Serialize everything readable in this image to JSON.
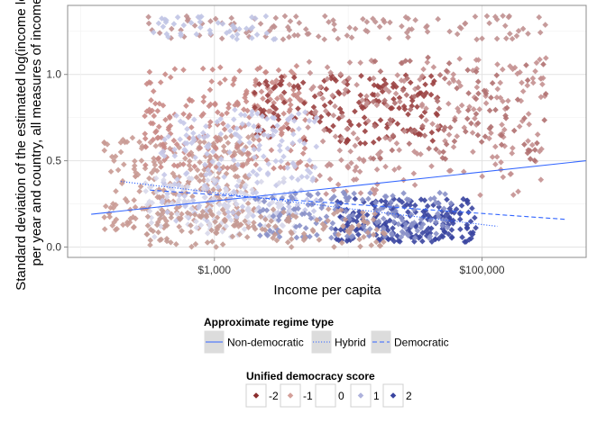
{
  "chart_data": {
    "type": "scatter",
    "title": "",
    "xlabel": "Income per capita",
    "ylabel_line1": "Standard deviation of the estimated log(income level)",
    "ylabel_line2": "per year and country, all measures of income",
    "x_scale": "log",
    "xlim": [
      80,
      600000
    ],
    "ylim": [
      -0.06,
      1.4
    ],
    "x_ticks": [
      {
        "value": 1000,
        "label": "$1,000"
      },
      {
        "value": 100000,
        "label": "$100,000"
      }
    ],
    "y_ticks": [
      {
        "value": 0.0,
        "label": "0.0"
      },
      {
        "value": 0.5,
        "label": "0.5"
      },
      {
        "value": 1.0,
        "label": "1.0"
      }
    ],
    "grid": true,
    "legend_position": "bottom",
    "regime_legend": {
      "title": "Approximate regime type",
      "entries": [
        {
          "label": "Non-democratic",
          "dash": "solid"
        },
        {
          "label": "Hybrid",
          "dash": "dotted"
        },
        {
          "label": "Democratic",
          "dash": "dashed"
        }
      ]
    },
    "score_legend": {
      "title": "Unified democracy score",
      "entries": [
        {
          "label": "-2",
          "color": "#8b2e2e"
        },
        {
          "label": "-1",
          "color": "#d4a09a"
        },
        {
          "label": "0",
          "color": "#ffffff"
        },
        {
          "label": "1",
          "color": "#aeb2dc"
        },
        {
          "label": "2",
          "color": "#3a45a0"
        }
      ]
    },
    "trend_lines": [
      {
        "name": "Non-democratic",
        "dash": "solid",
        "color": "#3366ff",
        "x": [
          120,
          600000
        ],
        "y": [
          0.19,
          0.5
        ]
      },
      {
        "name": "Hybrid",
        "dash": "dotted",
        "color": "#3366ff",
        "x": [
          200,
          130000
        ],
        "y": [
          0.38,
          0.12
        ]
      },
      {
        "name": "Democratic",
        "dash": "dashed",
        "color": "#3366ff",
        "x": [
          330,
          430000
        ],
        "y": [
          0.33,
          0.16
        ]
      }
    ],
    "clusters": [
      {
        "x": [
          150,
          2000
        ],
        "y": [
          0.1,
          0.65
        ],
        "color": "#c99a94",
        "n": 260
      },
      {
        "x": [
          300,
          5000
        ],
        "y": [
          0.45,
          1.05
        ],
        "color": "#c98a86",
        "n": 220
      },
      {
        "x": [
          2000,
          50000
        ],
        "y": [
          0.6,
          1.0
        ],
        "color": "#9a4040",
        "n": 170
      },
      {
        "x": [
          5000,
          300000
        ],
        "y": [
          0.3,
          1.1
        ],
        "color": "#c49090",
        "n": 220
      },
      {
        "x": [
          400,
          6000
        ],
        "y": [
          0.15,
          0.8
        ],
        "color": "#c5c8e8",
        "n": 220
      },
      {
        "x": [
          300,
          4000
        ],
        "y": [
          0.05,
          0.4
        ],
        "color": "#d8d8ea",
        "n": 120
      },
      {
        "x": [
          8000,
          90000
        ],
        "y": [
          0.03,
          0.28
        ],
        "color": "#3a45a0",
        "n": 200
      },
      {
        "x": [
          2000,
          60000
        ],
        "y": [
          0.05,
          0.32
        ],
        "color": "#8890c8",
        "n": 160
      },
      {
        "x": [
          300,
          20000
        ],
        "y": [
          0.0,
          0.22
        ],
        "color": "#c49a94",
        "n": 130
      },
      {
        "x": [
          300,
          300000
        ],
        "y": [
          1.2,
          1.34
        ],
        "color": "#c09090",
        "n": 110
      },
      {
        "x": [
          350,
          3000
        ],
        "y": [
          1.2,
          1.34
        ],
        "color": "#c0c4e4",
        "n": 45
      },
      {
        "x": [
          15000,
          300000
        ],
        "y": [
          0.5,
          1.1
        ],
        "color": "#b07070",
        "n": 90
      }
    ]
  }
}
